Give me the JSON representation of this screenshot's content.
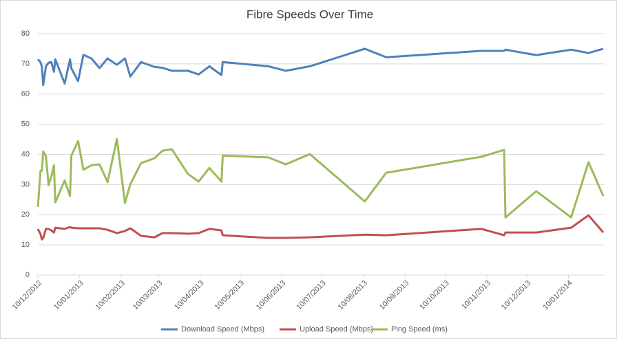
{
  "chart_data": {
    "type": "line",
    "title": "Fibre Speeds Over Time",
    "x": [
      "2012-12-10",
      "2012-12-12",
      "2012-12-13",
      "2012-12-14",
      "2012-12-16",
      "2012-12-18",
      "2012-12-20",
      "2012-12-22",
      "2012-12-23",
      "2012-12-30",
      "2013-01-03",
      "2013-01-04",
      "2013-01-09",
      "2013-01-13",
      "2013-01-19",
      "2013-01-25",
      "2013-01-31",
      "2013-02-07",
      "2013-02-13",
      "2013-02-17",
      "2013-02-25",
      "2013-03-07",
      "2013-03-13",
      "2013-03-20",
      "2013-04-01",
      "2013-04-09",
      "2013-04-17",
      "2013-04-26",
      "2013-04-27",
      "2013-05-31",
      "2013-06-13",
      "2013-07-01",
      "2013-08-11",
      "2013-08-27",
      "2013-11-06",
      "2013-11-23",
      "2013-11-24",
      "2013-12-17",
      "2014-01-12",
      "2014-01-25",
      "2014-02-05"
    ],
    "series": [
      {
        "name": "Download Speed (Mbps)",
        "color": "#4f81bd",
        "values": [
          71.5,
          70.5,
          69,
          63,
          69.2,
          70.4,
          70.6,
          67.4,
          71.5,
          63.5,
          71.5,
          68.5,
          64.3,
          73,
          71.8,
          68.6,
          71.8,
          69.7,
          71.8,
          65.8,
          70.6,
          69,
          68.7,
          67.7,
          67.7,
          66.5,
          69.2,
          66.3,
          70.6,
          69.2,
          67.7,
          69.2,
          75,
          72.2,
          74.3,
          74.3,
          74.7,
          72.9,
          74.7,
          73.6,
          75
        ]
      },
      {
        "name": "Upload Speed (Mbps)",
        "color": "#c0504d",
        "values": [
          15.3,
          13.5,
          11.8,
          12.3,
          15.3,
          15.3,
          14.8,
          14.1,
          15.7,
          15.3,
          15.9,
          15.7,
          15.5,
          15.5,
          15.5,
          15.5,
          15,
          13.9,
          14.6,
          15.5,
          13,
          12.5,
          13.9,
          13.9,
          13.7,
          13.9,
          15.3,
          14.8,
          13.2,
          12.3,
          12.3,
          12.5,
          13.4,
          13.2,
          15.3,
          13.2,
          14.1,
          14.1,
          15.7,
          19.8,
          14.1
        ]
      },
      {
        "name": "Ping Speed (ms)",
        "color": "#9bbb59",
        "values": [
          22.6,
          34.6,
          34.6,
          41,
          39.4,
          29.8,
          32.6,
          36.4,
          24.1,
          31.4,
          26.2,
          39.6,
          44.4,
          34.9,
          36.4,
          36.7,
          30.8,
          45.1,
          23.9,
          30.1,
          37.1,
          38.7,
          41.2,
          41.7,
          33.5,
          31,
          35.5,
          31,
          39.6,
          39,
          36.7,
          40.1,
          24.4,
          33.9,
          39.2,
          41.5,
          19.1,
          27.8,
          19.1,
          37.4,
          26.2
        ]
      }
    ],
    "xlim": [
      "2012-12-10",
      "2014-02-06"
    ],
    "xticks": [
      {
        "value": "2012-12-10",
        "label": "10/12/2012"
      },
      {
        "value": "2013-01-10",
        "label": "10/01/2013"
      },
      {
        "value": "2013-02-10",
        "label": "10/02/2013"
      },
      {
        "value": "2013-03-10",
        "label": "10/03/2013"
      },
      {
        "value": "2013-04-10",
        "label": "10/04/2013"
      },
      {
        "value": "2013-05-10",
        "label": "10/05/2013"
      },
      {
        "value": "2013-06-10",
        "label": "10/06/2013"
      },
      {
        "value": "2013-07-10",
        "label": "10/07/2013"
      },
      {
        "value": "2013-08-10",
        "label": "10/08/2013"
      },
      {
        "value": "2013-09-10",
        "label": "10/09/2013"
      },
      {
        "value": "2013-10-10",
        "label": "10/10/2013"
      },
      {
        "value": "2013-11-10",
        "label": "10/11/2013"
      },
      {
        "value": "2013-12-10",
        "label": "10/12/2013"
      },
      {
        "value": "2014-01-10",
        "label": "10/01/2014"
      }
    ],
    "ylim": [
      0,
      80
    ],
    "yticks": [
      0,
      10,
      20,
      30,
      40,
      50,
      60,
      70,
      80
    ],
    "grid": true,
    "legend": "bottom"
  }
}
